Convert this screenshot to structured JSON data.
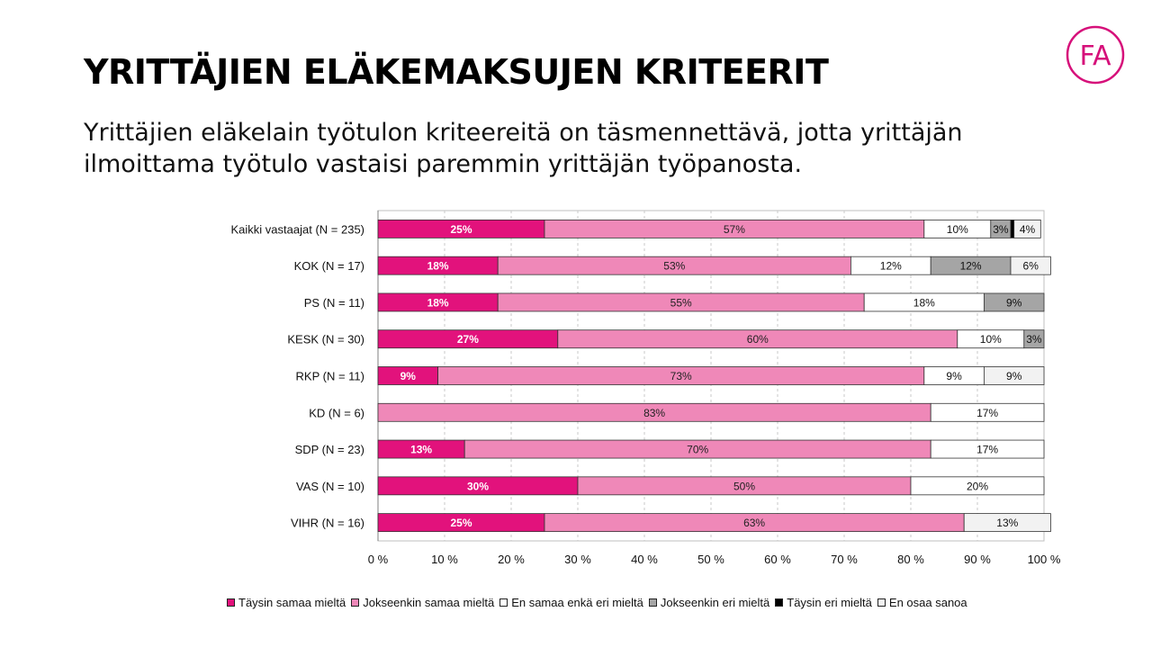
{
  "slide": {
    "title": "YRITTÄJIEN ELÄKEMAKSUJEN KRITEERIT",
    "subtitle": "Yrittäjien eläkelain työtulon kriteereitä on täsmennettävä, jotta yrittäjän ilmoittama työtulo vastaisi paremmin yrittäjän työpanosta.",
    "logo_text": "FA",
    "logo_color": "#d6107a"
  },
  "chart_data": {
    "type": "bar",
    "orientation": "horizontal",
    "stacked": true,
    "xlim": [
      0,
      100
    ],
    "x_ticks": [
      "0 %",
      "10 %",
      "20 %",
      "30 %",
      "40 %",
      "50 %",
      "60 %",
      "70 %",
      "80 %",
      "90 %",
      "100 %"
    ],
    "grid": "vertical-dashed",
    "legend_position": "bottom",
    "categories": [
      "Kaikki vastaajat (N = 235)",
      "KOK (N = 17)",
      "PS (N = 11)",
      "KESK (N = 30)",
      "RKP (N = 11)",
      "KD (N = 6)",
      "SDP (N = 23)",
      "VAS (N = 10)",
      "VIHR (N = 16)"
    ],
    "series": [
      {
        "name": "Täysin samaa mieltä",
        "color": "#e2127c",
        "label_color": "#ffffff",
        "bold": true,
        "values": [
          25,
          18,
          18,
          27,
          9,
          0,
          13,
          30,
          25
        ]
      },
      {
        "name": "Jokseenkin samaa mieltä",
        "color": "#ef88b8",
        "label_color": "#222222",
        "bold": false,
        "values": [
          57,
          53,
          55,
          60,
          73,
          83,
          70,
          50,
          63
        ]
      },
      {
        "name": "En samaa enkä eri mieltä",
        "color": "#ffffff",
        "label_color": "#111111",
        "bold": false,
        "values": [
          10,
          12,
          18,
          10,
          9,
          17,
          17,
          20,
          0
        ]
      },
      {
        "name": "Jokseenkin eri mieltä",
        "color": "#a5a5a5",
        "label_color": "#111111",
        "bold": false,
        "values": [
          3,
          12,
          9,
          3,
          0,
          0,
          0,
          0,
          0
        ]
      },
      {
        "name": "Täysin eri mieltä",
        "color": "#000000",
        "label_color": "#111111",
        "bold": false,
        "values": [
          0.5,
          0,
          0,
          0,
          0,
          0,
          0,
          0,
          0
        ]
      },
      {
        "name": "En osaa sanoa",
        "color": "#f2f2f2",
        "label_color": "#111111",
        "bold": false,
        "values": [
          4,
          6,
          0,
          0,
          9,
          0,
          0,
          0,
          13
        ]
      }
    ],
    "data_labels": [
      [
        "25%",
        "57%",
        "10%",
        "3%",
        "",
        "4%"
      ],
      [
        "18%",
        "53%",
        "12%",
        "12%",
        "",
        "6%"
      ],
      [
        "18%",
        "55%",
        "18%",
        "9%",
        "",
        ""
      ],
      [
        "27%",
        "60%",
        "10%",
        "3%",
        "",
        ""
      ],
      [
        "9%",
        "73%",
        "9%",
        "",
        "",
        "9%"
      ],
      [
        "",
        "83%",
        "17%",
        "",
        "",
        ""
      ],
      [
        "13%",
        "70%",
        "17%",
        "",
        "",
        ""
      ],
      [
        "30%",
        "50%",
        "20%",
        "",
        "",
        ""
      ],
      [
        "25%",
        "63%",
        "",
        "",
        "",
        "13%"
      ]
    ]
  }
}
